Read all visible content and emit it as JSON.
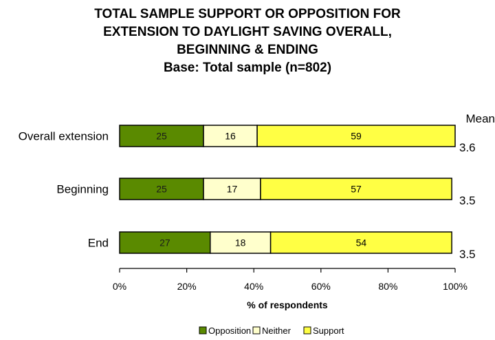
{
  "chart_data": {
    "type": "bar",
    "stacked": true,
    "orientation": "horizontal",
    "title_lines": [
      "TOTAL SAMPLE SUPPORT OR OPPOSITION FOR",
      "EXTENSION TO DAYLIGHT SAVING OVERALL,",
      "BEGINNING & ENDING",
      "Base: Total sample (n=802)"
    ],
    "categories": [
      "Overall extension",
      "Beginning",
      "End"
    ],
    "series": [
      {
        "name": "Opposition",
        "color": "#5a8a00",
        "values": [
          25,
          25,
          27
        ]
      },
      {
        "name": "Neither",
        "color": "#ffffcc",
        "values": [
          16,
          17,
          18
        ]
      },
      {
        "name": "Support",
        "color": "#ffff44",
        "values": [
          59,
          57,
          54
        ]
      }
    ],
    "mean_header": "Mean",
    "means": [
      "3.6",
      "3.5",
      "3.5"
    ],
    "xlabel": "% of respondents",
    "xlim": [
      0,
      100
    ],
    "xticks": [
      "0%",
      "20%",
      "40%",
      "60%",
      "80%",
      "100%"
    ],
    "legend_position": "bottom"
  }
}
